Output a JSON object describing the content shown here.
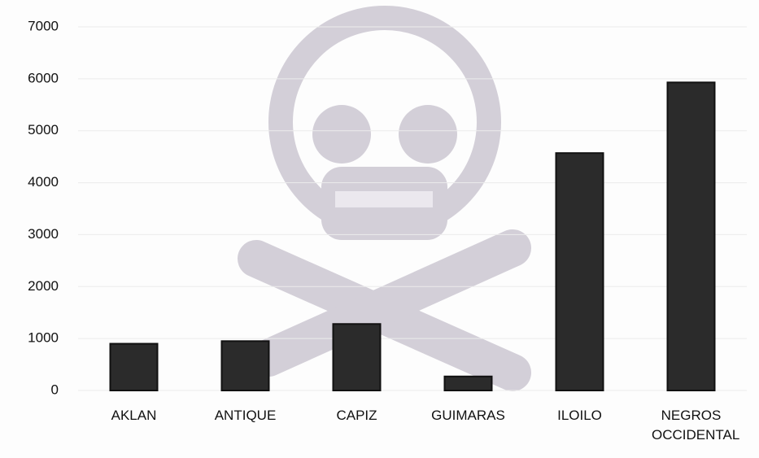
{
  "chart_data": {
    "type": "bar",
    "categories": [
      "AKLAN",
      "ANTIQUE",
      "CAPIZ",
      "GUIMARAS",
      "ILOILO",
      "NEGROS OCCIDENTAL"
    ],
    "values": [
      900,
      950,
      1280,
      270,
      4570,
      5930
    ],
    "color": "#2b2b2b",
    "ylim": [
      0,
      7000
    ],
    "yticks": [
      0,
      1000,
      2000,
      3000,
      4000,
      5000,
      6000,
      7000
    ],
    "grid": true
  }
}
